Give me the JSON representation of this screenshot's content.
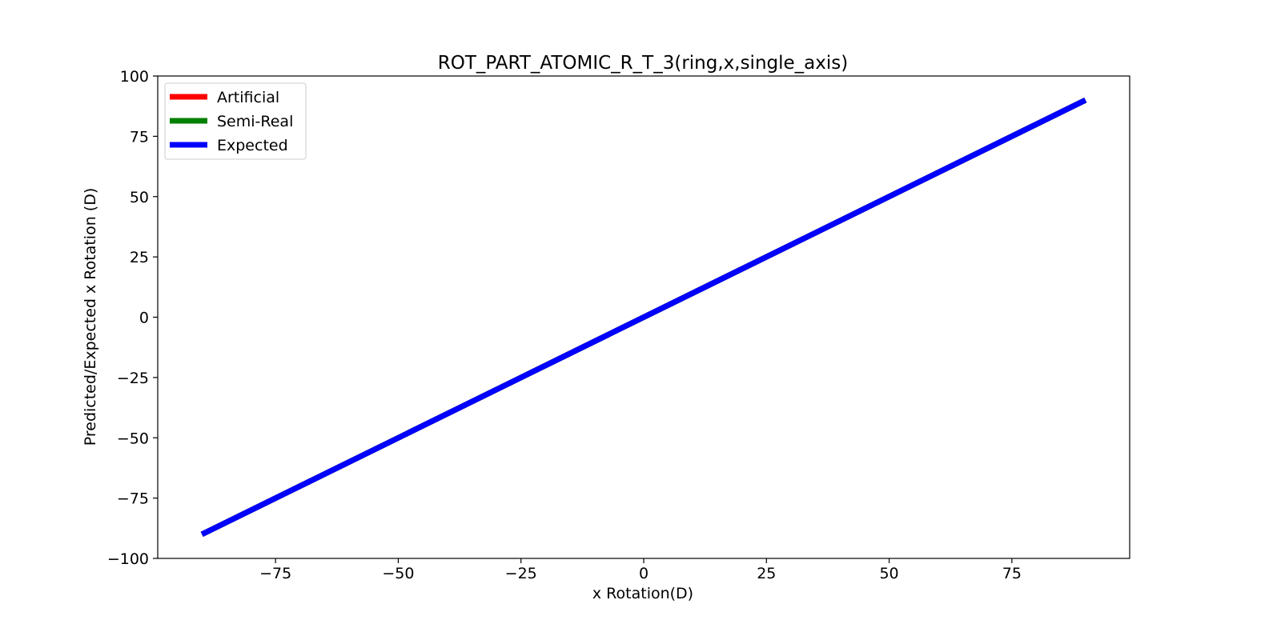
{
  "chart_data": {
    "type": "line",
    "title": "ROT_PART_ATOMIC_R_T_3(ring,x,single_axis)",
    "xlabel": "x Rotation(D)",
    "ylabel": "Predicted/Expected x Rotation (D)",
    "xlim": [
      -99,
      99
    ],
    "ylim": [
      -100,
      100
    ],
    "xticks": [
      -75,
      -50,
      -25,
      0,
      25,
      50,
      75
    ],
    "xtick_labels": [
      "−75",
      "−50",
      "−25",
      "0",
      "25",
      "50",
      "75"
    ],
    "yticks": [
      100,
      75,
      50,
      25,
      0,
      -25,
      -50,
      -75,
      -100
    ],
    "ytick_labels": [
      "100",
      "75",
      "50",
      "25",
      "0",
      "−25",
      "−50",
      "−75",
      "−100"
    ],
    "grid": false,
    "legend_position": "upper-left",
    "series": [
      {
        "name": "Artificial",
        "color": "#ff0000",
        "x": [
          -90,
          90
        ],
        "y": [
          -90,
          90
        ]
      },
      {
        "name": "Semi-Real",
        "color": "#008000",
        "x": [
          -90,
          90
        ],
        "y": [
          -90,
          90
        ]
      },
      {
        "name": "Expected",
        "color": "#0000ff",
        "x": [
          -90,
          90
        ],
        "y": [
          -90,
          90
        ]
      }
    ]
  }
}
